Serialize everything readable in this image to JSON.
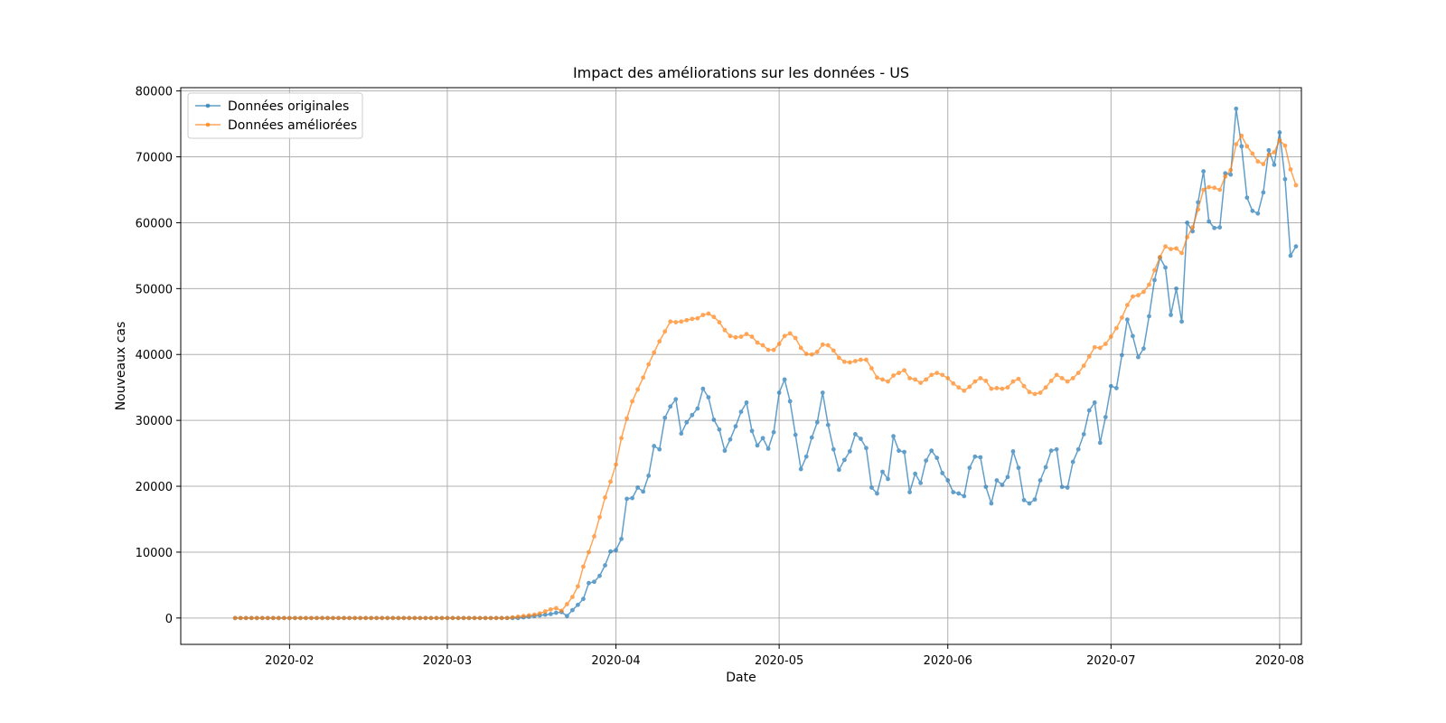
{
  "chart_data": {
    "type": "line",
    "title": "Impact des améliorations sur les données - US",
    "xlabel": "Date",
    "ylabel": "Nouveaux cas",
    "x_start_date": "2020-01-22",
    "x_ticks": [
      "2020-02",
      "2020-03",
      "2020-04",
      "2020-05",
      "2020-06",
      "2020-07",
      "2020-08"
    ],
    "x_range": [
      "2020-01-12",
      "2020-08-05"
    ],
    "ylim": [
      -4000,
      80500
    ],
    "y_ticks": [
      0,
      10000,
      20000,
      30000,
      40000,
      50000,
      60000,
      70000,
      80000
    ],
    "grid": true,
    "legend_position": "top-left",
    "series": [
      {
        "name": "Données originales",
        "color": "#1f77b4",
        "values": [
          0,
          0,
          0,
          0,
          0,
          0,
          0,
          0,
          0,
          0,
          0,
          0,
          0,
          0,
          0,
          0,
          0,
          0,
          0,
          0,
          0,
          0,
          0,
          0,
          0,
          0,
          0,
          0,
          0,
          0,
          0,
          0,
          0,
          0,
          0,
          0,
          0,
          0,
          0,
          0,
          0,
          0,
          0,
          0,
          0,
          0,
          0,
          0,
          0,
          0,
          0,
          0,
          0,
          100,
          200,
          300,
          400,
          500,
          600,
          800,
          900,
          300,
          1200,
          2000,
          2900,
          5300,
          5500,
          6400,
          8000,
          10100,
          10300,
          12000,
          18100,
          18200,
          19800,
          19200,
          21600,
          26100,
          25600,
          30400,
          32100,
          33200,
          28000,
          29700,
          30800,
          31800,
          34800,
          33500,
          30100,
          28600,
          25400,
          27100,
          29100,
          31300,
          32700,
          28400,
          26200,
          27300,
          25700,
          28200,
          34200,
          36200,
          32900,
          27800,
          22600,
          24500,
          27400,
          29700,
          34200,
          29300,
          25600,
          22500,
          24000,
          25300,
          27900,
          27200,
          25800,
          19800,
          18900,
          22200,
          21100,
          27600,
          25400,
          25200,
          19100,
          21900,
          20500,
          23900,
          25400,
          24300,
          22000,
          20900,
          19100,
          18900,
          18500,
          22800,
          24500,
          24400,
          19900,
          17400,
          20900,
          20200,
          21400,
          25300,
          22800,
          17900,
          17400,
          18000,
          20900,
          22900,
          25400,
          25600,
          19900,
          19800,
          23700,
          25600,
          27900,
          31500,
          32700,
          26600,
          30500,
          35200,
          34900,
          39900,
          45300,
          42800,
          39600,
          40900,
          45800,
          51300,
          54700,
          53200,
          46000,
          50000,
          45000,
          60000,
          58700,
          63100,
          67800,
          60200,
          59200,
          59300,
          67500,
          67300,
          77300,
          71600,
          63800,
          61800,
          61400,
          64600,
          71000,
          68800,
          73700,
          66600,
          55000,
          56400
        ]
      },
      {
        "name": "Données améliorées",
        "color": "#ff7f0e",
        "values": [
          0,
          0,
          0,
          0,
          0,
          0,
          0,
          0,
          0,
          0,
          0,
          0,
          0,
          0,
          0,
          0,
          0,
          0,
          0,
          0,
          0,
          0,
          0,
          0,
          0,
          0,
          0,
          0,
          0,
          0,
          0,
          0,
          0,
          0,
          0,
          0,
          0,
          0,
          0,
          0,
          0,
          0,
          0,
          0,
          0,
          0,
          0,
          0,
          0,
          0,
          0,
          100,
          200,
          300,
          400,
          500,
          700,
          1000,
          1300,
          1500,
          1100,
          2100,
          3200,
          4800,
          7800,
          10000,
          12400,
          15300,
          18300,
          20700,
          23300,
          27300,
          30300,
          32900,
          34700,
          36500,
          38500,
          40300,
          42000,
          43500,
          45000,
          44900,
          45000,
          45200,
          45400,
          45500,
          46000,
          46200,
          45700,
          44900,
          43700,
          42800,
          42600,
          42700,
          43100,
          42700,
          41800,
          41400,
          40700,
          40700,
          41600,
          42800,
          43200,
          42500,
          41000,
          40100,
          40000,
          40400,
          41500,
          41400,
          40600,
          39500,
          38900,
          38800,
          39000,
          39200,
          39200,
          37900,
          36500,
          36200,
          35900,
          36800,
          37200,
          37600,
          36400,
          36200,
          35700,
          36200,
          36900,
          37200,
          36900,
          36400,
          35600,
          35000,
          34500,
          35100,
          35900,
          36400,
          36000,
          34800,
          34900,
          34800,
          35000,
          35900,
          36300,
          35200,
          34300,
          34000,
          34200,
          35000,
          36000,
          36900,
          36400,
          35900,
          36400,
          37200,
          38300,
          39700,
          41100,
          41000,
          41600,
          42700,
          44000,
          45600,
          47500,
          48800,
          49000,
          49500,
          50600,
          52800,
          54800,
          56400,
          56000,
          56100,
          55400,
          57800,
          59300,
          62000,
          65000,
          65400,
          65300,
          65000,
          67000,
          68000,
          71900,
          73200,
          71600,
          70500,
          69300,
          68900,
          70300,
          70700,
          72500,
          71700,
          68100,
          65700
        ]
      }
    ]
  }
}
